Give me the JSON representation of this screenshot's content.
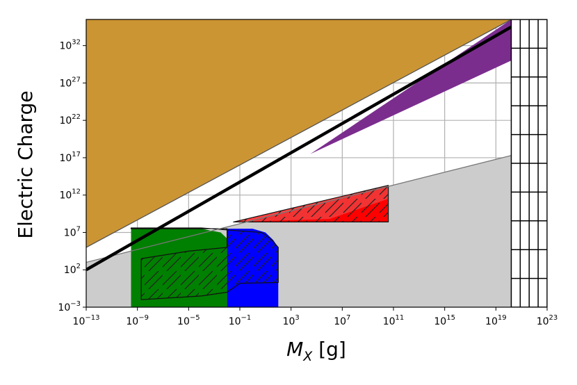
{
  "chart_data": {
    "type": "area",
    "title": "",
    "xlabel": "M_X [g]",
    "ylabel": "Electric Charge",
    "x_scale": "log",
    "y_scale": "log",
    "xlim_exp": [
      -13,
      23
    ],
    "ylim_exp": [
      -3,
      35.5
    ],
    "grid": true,
    "x_tick_exponents": [
      -13,
      -9,
      -5,
      -1,
      3,
      7,
      11,
      15,
      19,
      23
    ],
    "y_tick_exponents": [
      -3,
      2,
      7,
      12,
      17,
      22,
      27,
      32
    ],
    "tick_base": "10",
    "colors": {
      "orange_region": "#cc9533",
      "purple_region": "#7b2d8e",
      "gray_region": "#cccccc",
      "red_region": "#ff0000",
      "blue_region": "#0000ff",
      "green_region": "#008000",
      "black_line": "#000000"
    },
    "regions": [
      {
        "id": "orange",
        "points": [
          [
            -13,
            5.0
          ],
          [
            20.2,
            35.5
          ],
          [
            -13,
            35.5
          ]
        ]
      },
      {
        "id": "gray",
        "points": [
          [
            -13,
            -3
          ],
          [
            20.2,
            -3
          ],
          [
            20.2,
            17.3
          ],
          [
            -13,
            3
          ]
        ]
      },
      {
        "id": "purple",
        "points": [
          [
            4.5,
            17.5
          ],
          [
            20.2,
            35.5
          ],
          [
            20.2,
            30
          ]
        ]
      },
      {
        "id": "red_upper",
        "points": [
          [
            -1.5,
            8.4
          ],
          [
            10.6,
            13.3
          ],
          [
            10.6,
            8.4
          ]
        ]
      },
      {
        "id": "red_lower",
        "points": [
          [
            -1.5,
            8.4
          ],
          [
            10.6,
            8.4
          ],
          [
            10.6,
            11.5
          ],
          [
            6,
            8.8
          ]
        ]
      },
      {
        "id": "blue",
        "points": [
          [
            -2,
            -3
          ],
          [
            -2,
            7.5
          ],
          [
            0,
            7.5
          ],
          [
            1,
            7.0
          ],
          [
            1.6,
            6.0
          ],
          [
            2,
            5.0
          ],
          [
            2,
            -3
          ]
        ]
      },
      {
        "id": "green",
        "points": [
          [
            -9.5,
            -3
          ],
          [
            -9.5,
            7.5
          ],
          [
            -4,
            7.5
          ],
          [
            -2.5,
            7.0
          ],
          [
            -2,
            6.2
          ],
          [
            -2,
            -3
          ]
        ]
      }
    ],
    "hatched_regions": [
      {
        "id": "hatch_blue_green",
        "points": [
          [
            -9.5,
            7.6
          ],
          [
            -4,
            7.6
          ],
          [
            -1,
            7.2
          ],
          [
            0.7,
            7.0
          ],
          [
            1.5,
            6.0
          ],
          [
            2,
            5.0
          ],
          [
            2,
            0.3
          ],
          [
            -1,
            0.2
          ],
          [
            -2,
            -1.0
          ],
          [
            -4,
            -1.5
          ],
          [
            -8.7,
            -2.0
          ],
          [
            -8.7,
            3.5
          ],
          [
            -5,
            4.5
          ],
          [
            -2,
            5.0
          ],
          [
            -2,
            7.5
          ],
          [
            -9.5,
            7.5
          ]
        ]
      },
      {
        "id": "hatch_red",
        "points": [
          [
            -1.5,
            8.4
          ],
          [
            10.6,
            13.3
          ],
          [
            10.6,
            8.4
          ]
        ]
      }
    ],
    "boundary_lines": [
      {
        "id": "orange_edge",
        "points": [
          [
            -13,
            5.0
          ],
          [
            20.2,
            35.5
          ]
        ],
        "color": "#555555"
      },
      {
        "id": "gray_lower_edge",
        "points": [
          [
            -13,
            3
          ],
          [
            20.2,
            17.3
          ]
        ],
        "color": "#777777"
      }
    ],
    "thick_line": {
      "points": [
        [
          -13,
          2.0
        ],
        [
          20.2,
          34.5
        ]
      ]
    },
    "grid_box": {
      "x_exp": [
        20.2,
        23
      ],
      "cols": 4,
      "rows": 10
    }
  }
}
